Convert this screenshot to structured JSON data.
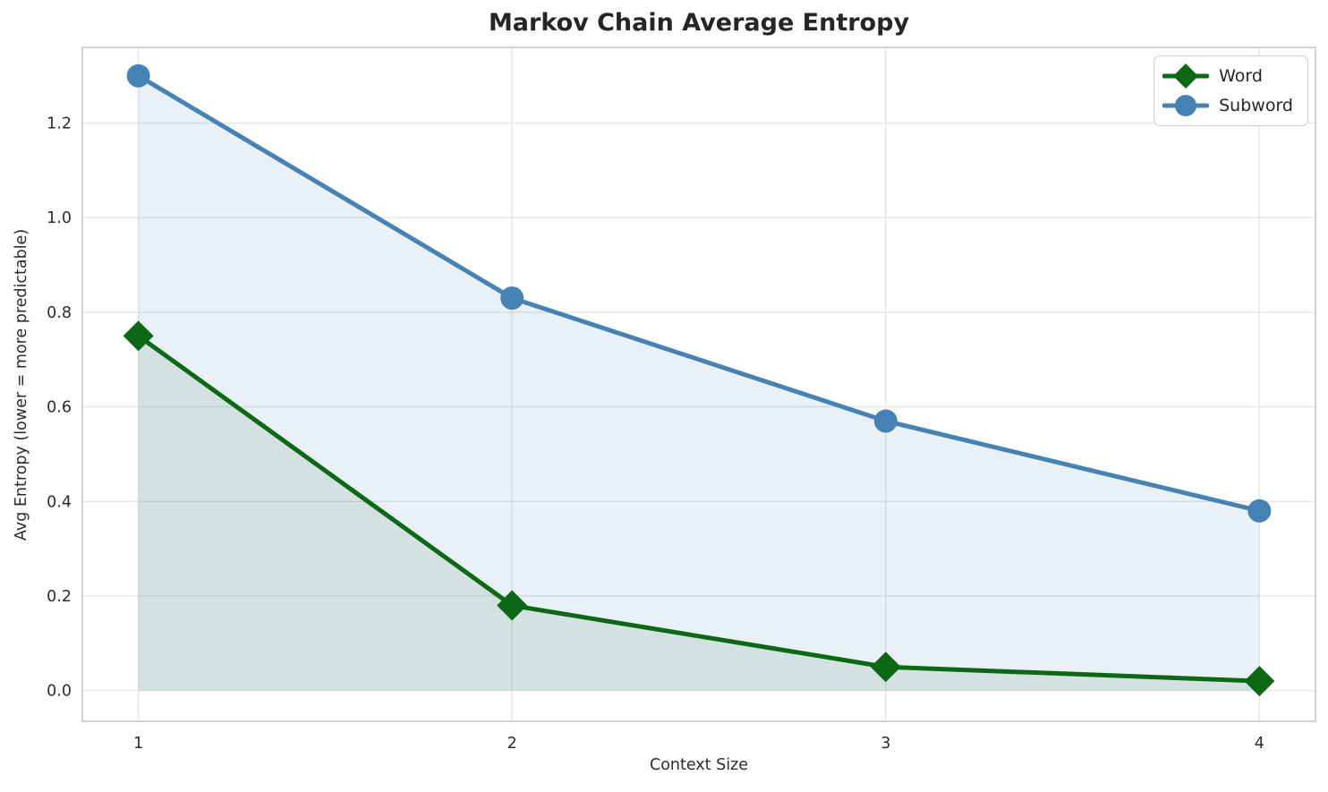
{
  "chart_data": {
    "type": "line",
    "title": "Markov Chain Average Entropy",
    "xlabel": "Context Size",
    "ylabel": "Avg Entropy (lower = more predictable)",
    "x": [
      1,
      2,
      3,
      4
    ],
    "series": [
      {
        "name": "Word",
        "values": [
          0.75,
          0.18,
          0.05,
          0.02
        ],
        "color": "#0d6816",
        "marker": "diamond",
        "fill_color": "rgba(13,104,22,0.10)"
      },
      {
        "name": "Subword",
        "values": [
          1.3,
          0.83,
          0.57,
          0.38
        ],
        "color": "#4682b4",
        "marker": "circle",
        "fill_color": "rgba(70,130,180,0.12)"
      }
    ],
    "xticks": [
      1,
      2,
      3,
      4
    ],
    "yticks": [
      0.0,
      0.2,
      0.4,
      0.6,
      0.8,
      1.0,
      1.2
    ],
    "xlim": [
      0.85,
      4.15
    ],
    "ylim": [
      -0.065,
      1.36
    ],
    "grid": true,
    "fill_to_zero": true,
    "legend_position": "top-right",
    "style": {
      "grid_color": "#e6e6e6",
      "spine_color": "#c4c6c8",
      "tick_label_color": "#2b2b2b",
      "title_color": "#262626"
    }
  }
}
